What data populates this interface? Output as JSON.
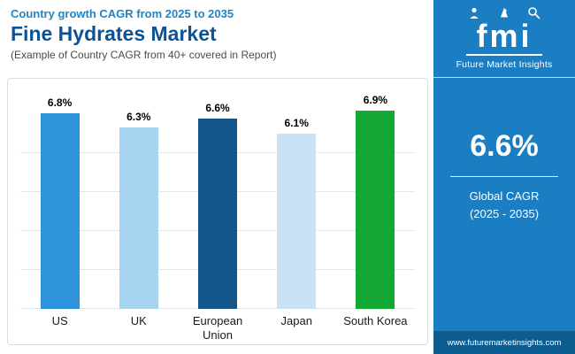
{
  "header": {
    "eyebrow": "Country growth CAGR from 2025 to 2035",
    "title": "Fine Hydrates Market",
    "subtitle": "(Example of Country CAGR from 40+ covered in Report)"
  },
  "sidebar": {
    "logo_text": "fmi",
    "brand_name": "Future Market Insights",
    "global_cagr_value": "6.6%",
    "global_cagr_label": "Global CAGR",
    "global_cagr_period": "(2025 - 2035)",
    "website": "www.futuremarketinsights.com",
    "colors": {
      "background": "#1B7DC2",
      "footer_background": "#0C5C90"
    }
  },
  "chart_data": {
    "type": "bar",
    "title": "Fine Hydrates Market — Country growth CAGR from 2025 to 2035",
    "categories": [
      "US",
      "UK",
      "European Union",
      "Japan",
      "South Korea"
    ],
    "values": [
      6.8,
      6.3,
      6.6,
      6.1,
      6.9
    ],
    "value_labels": [
      "6.8%",
      "6.3%",
      "6.6%",
      "6.1%",
      "6.9%"
    ],
    "bar_colors": [
      "#2E93DB",
      "#A6D3F0",
      "#14568A",
      "#C9E2F5",
      "#16A835"
    ],
    "ylim": [
      0,
      8
    ],
    "grid": true,
    "legend": "none"
  }
}
